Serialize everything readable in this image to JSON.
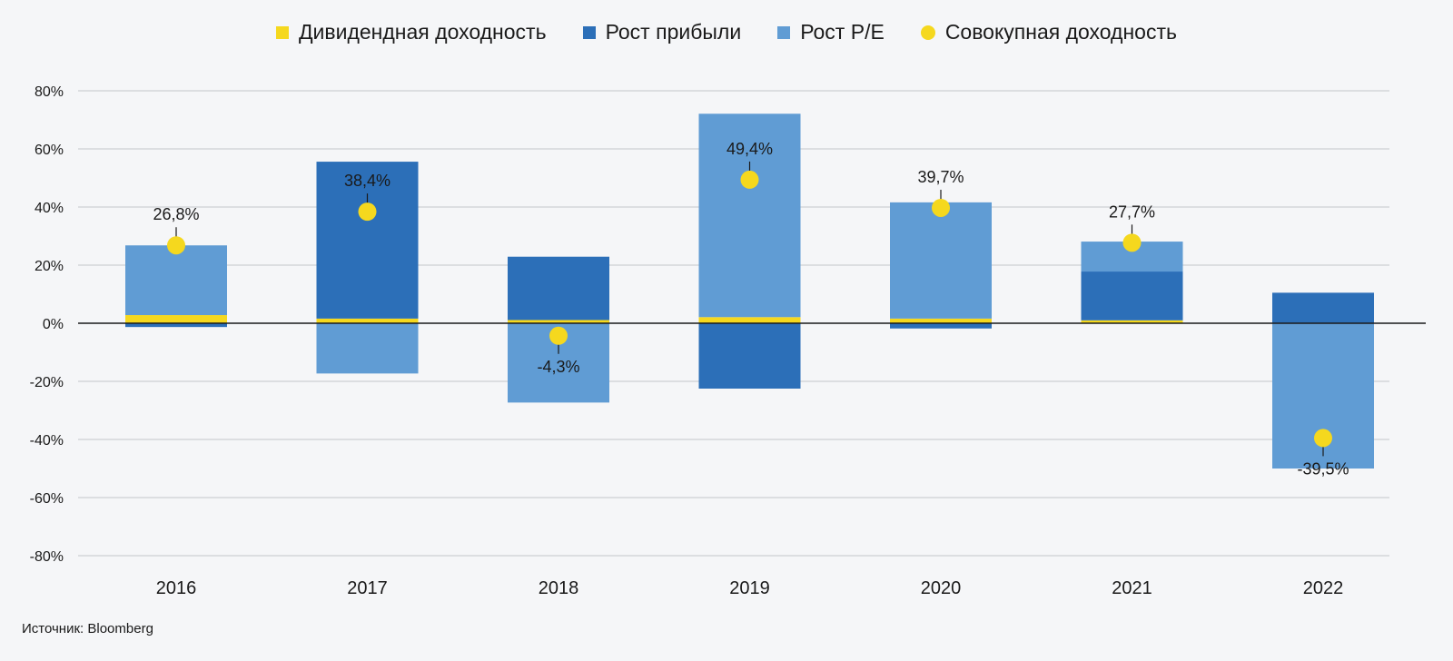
{
  "legend": [
    {
      "label": "Дивидендная доходность",
      "color": "#f5d81e",
      "shape": "square"
    },
    {
      "label": "Рост прибыли",
      "color": "#2c6fb8",
      "shape": "square"
    },
    {
      "label": "Рост P/E",
      "color": "#609cd4",
      "shape": "square"
    },
    {
      "label": "Совокупная доходность",
      "color": "#f5d81e",
      "shape": "circle"
    }
  ],
  "source": "Источник: Bloomberg",
  "chart_data": {
    "type": "bar",
    "stacked": true,
    "categories": [
      "2016",
      "2017",
      "2018",
      "2019",
      "2020",
      "2021",
      "2022"
    ],
    "series": [
      {
        "name": "Дивидендная доходность",
        "color": "#f5d81e",
        "values": [
          2.8,
          1.6,
          1.1,
          2.1,
          1.6,
          1.0,
          0.0
        ]
      },
      {
        "name": "Рост прибыли",
        "color": "#2c6fb8",
        "values": [
          -1.3,
          54.0,
          21.8,
          -22.5,
          -1.8,
          16.8,
          10.5
        ]
      },
      {
        "name": "Рост P/E",
        "color": "#609cd4",
        "values": [
          24.0,
          -17.3,
          -27.3,
          70.0,
          40.0,
          10.3,
          -50.0
        ]
      }
    ],
    "total_return": {
      "name": "Совокупная доходность",
      "color": "#f5d81e",
      "values": [
        26.8,
        38.4,
        -4.3,
        49.4,
        39.7,
        27.7,
        -39.5
      ],
      "labels": [
        "26,8%",
        "38,4%",
        "-4,3%",
        "49,4%",
        "39,7%",
        "27,7%",
        "-39,5%"
      ]
    },
    "y_ticks": [
      "80%",
      "60%",
      "40%",
      "20%",
      "0%",
      "-20%",
      "-40%",
      "-60%",
      "-80%"
    ],
    "ylim": [
      -80,
      80
    ],
    "grid": true,
    "legend_position": "top-center"
  }
}
